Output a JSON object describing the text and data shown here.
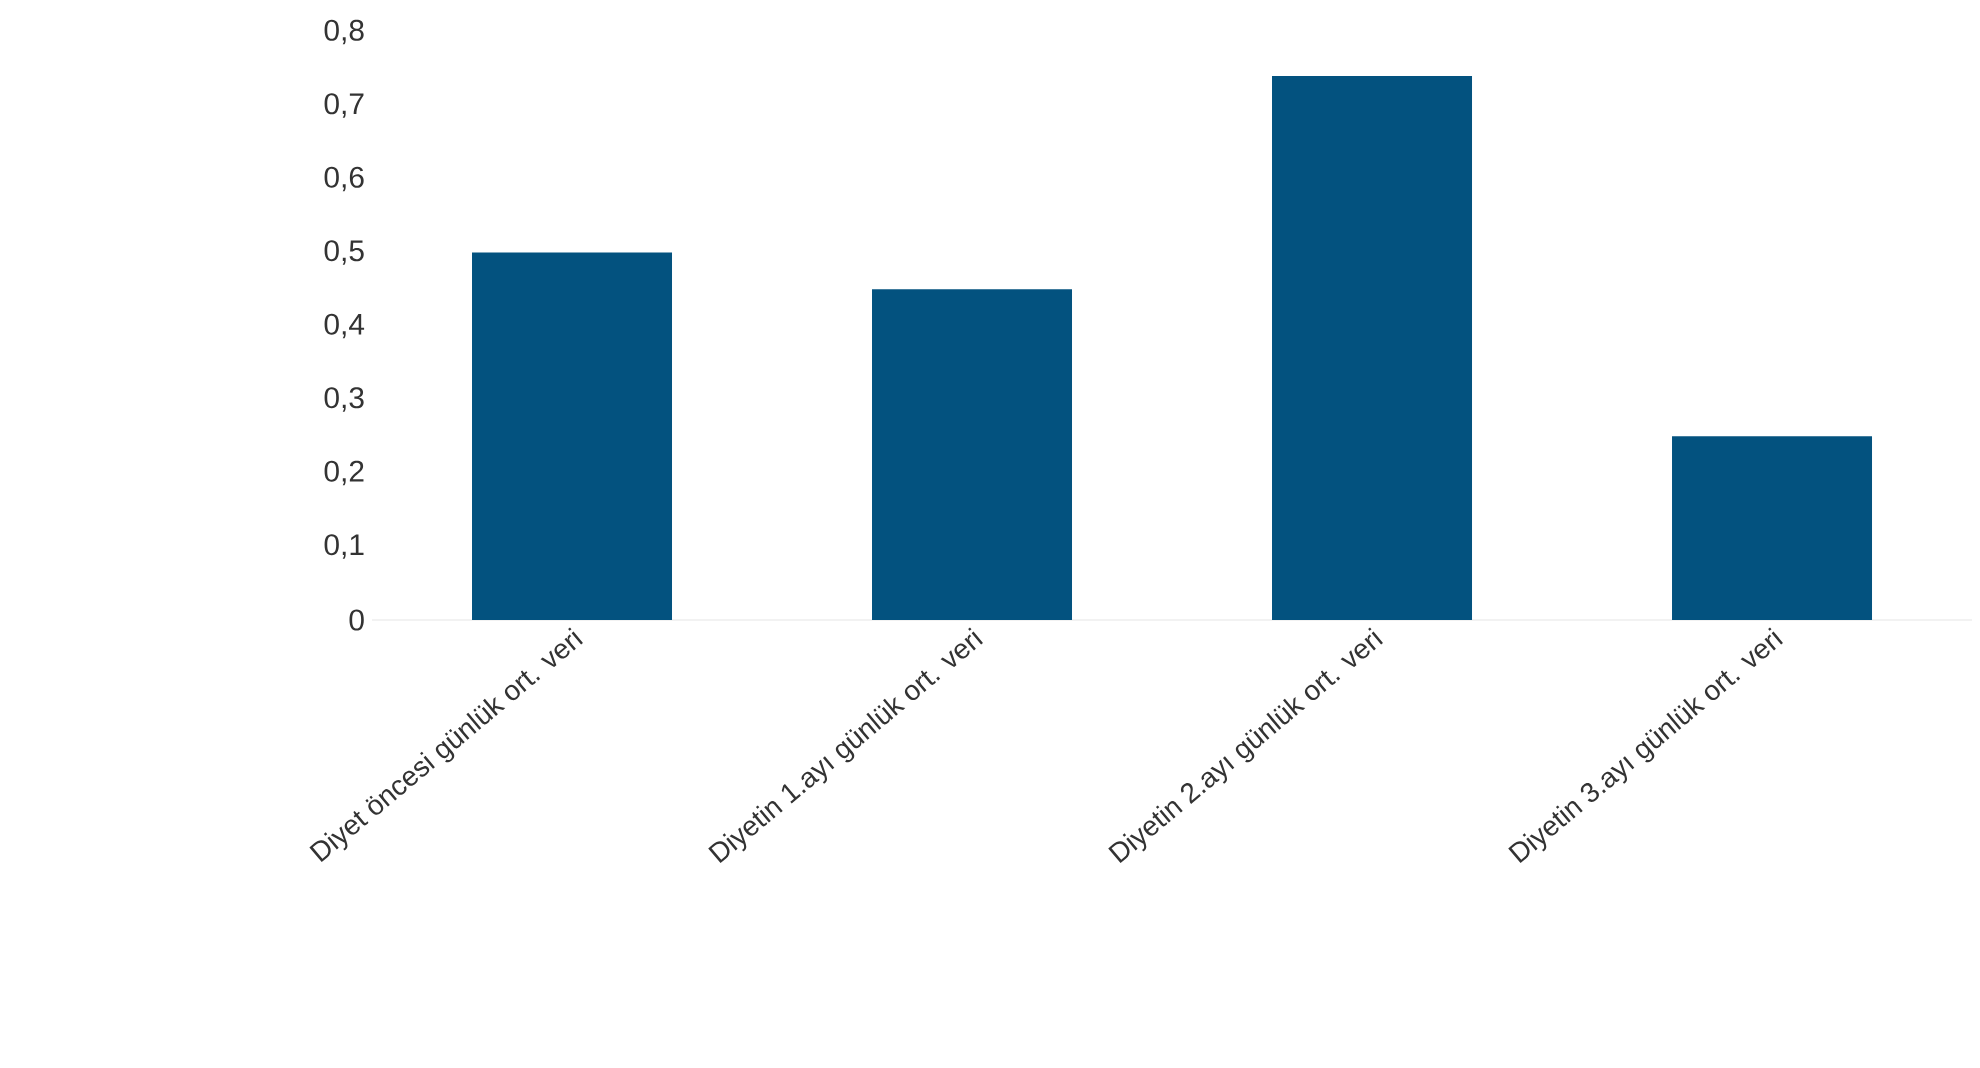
{
  "chart_data": {
    "type": "bar",
    "categories": [
      "Diyet öncesi günlük ort. veri",
      "Diyetin 1.ayı günlük ort. veri",
      "Diyetin 2.ayı günlük ort. veri",
      "Diyetin 3.ayı günlük ort. veri"
    ],
    "values": [
      0.5,
      0.45,
      0.74,
      0.25
    ],
    "color": "#03527f",
    "ylim": [
      0,
      0.8
    ],
    "yticks": [
      {
        "value": 0,
        "label": "0"
      },
      {
        "value": 0.1,
        "label": "0,1"
      },
      {
        "value": 0.2,
        "label": "0,2"
      },
      {
        "value": 0.3,
        "label": "0,3"
      },
      {
        "value": 0.4,
        "label": "0,4"
      },
      {
        "value": 0.5,
        "label": "0,5"
      },
      {
        "value": 0.6,
        "label": "0,6"
      },
      {
        "value": 0.7,
        "label": "0,7"
      },
      {
        "value": 0.8,
        "label": "0,8"
      }
    ]
  }
}
